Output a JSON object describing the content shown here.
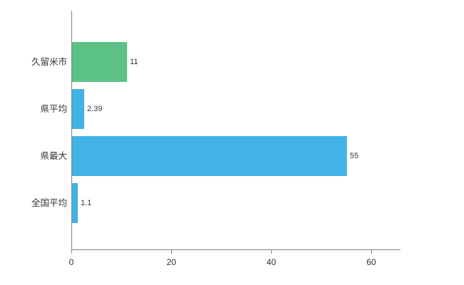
{
  "chart_data": {
    "type": "bar",
    "orientation": "horizontal",
    "categories": [
      "久留米市",
      "県平均",
      "県最大",
      "全国平均"
    ],
    "values": [
      11,
      2.39,
      55,
      1.1
    ],
    "value_labels": [
      "11",
      "2.39",
      "55",
      "1.1"
    ],
    "bar_colors": [
      "#5cc184",
      "#41b3e6",
      "#41b3e6",
      "#41b3e6"
    ],
    "xticks": [
      0,
      20,
      40,
      60
    ],
    "xlim": [
      0,
      65.7
    ],
    "grid": false,
    "legend": false,
    "axis_color": "#808080",
    "text_color": "#333333"
  }
}
